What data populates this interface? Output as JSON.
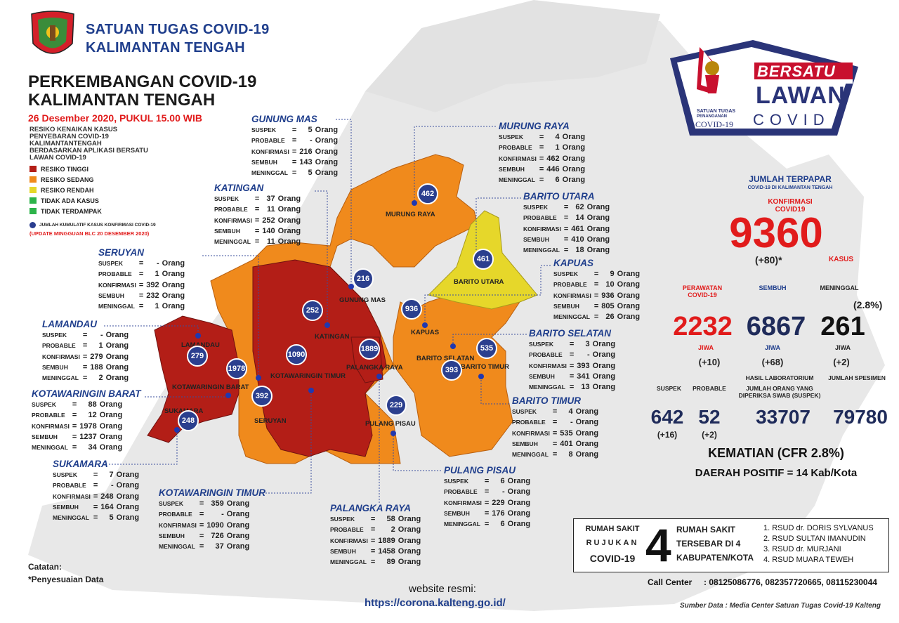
{
  "header": {
    "org_line1": "SATUAN TUGAS COVID-19",
    "org_line2": "KALIMANTAN TENGAH",
    "title_line1": "PERKEMBANGAN COVID-19",
    "title_line2": "KALIMANTAN TENGAH",
    "date": "26 Desember 2020, PUKUL 15.00 WIB"
  },
  "legend": {
    "title": "RESIKO KENAIKAN KASUS PENYEBARAN COVID-19 KALIMANTANTENGAH BERDASARKAN APLIKASI BERSATU LAWAN COVID-19",
    "items": [
      {
        "label": "RESIKO TINGGI",
        "color": "#b31e17"
      },
      {
        "label": "RESIKO SEDANG",
        "color": "#f08a1c"
      },
      {
        "label": "RESIKO RENDAH",
        "color": "#e6d72a"
      },
      {
        "label": "TIDAK ADA KASUS",
        "color": "#2db34a"
      },
      {
        "label": "TIDAK TERDAMPAK",
        "color": "#2db34a"
      }
    ],
    "dot_label": "JUMLAH KUMULATIF KASUS KONFIRMASI COVID-19",
    "update": "(UPDATE MINGGUAN BLC 20 DESEMBER 2020)"
  },
  "stat_keys": {
    "suspek": "SUSPEK",
    "probable": "PROBABLE",
    "konfirmasi": "KONFIRMASI",
    "sembuh": "SEMBUH",
    "meninggal": "MENINGGAL",
    "eq": "=",
    "unit": "Orang"
  },
  "regions": {
    "gunung_mas": {
      "name": "GUNUNG MAS",
      "suspek": "5",
      "probable": "-",
      "konfirmasi": "216",
      "sembuh": "143",
      "meninggal": "5"
    },
    "murung_raya": {
      "name": "MURUNG RAYA",
      "suspek": "4",
      "probable": "1",
      "konfirmasi": "462",
      "sembuh": "446",
      "meninggal": "6"
    },
    "katingan": {
      "name": "KATINGAN",
      "suspek": "37",
      "probable": "11",
      "konfirmasi": "252",
      "sembuh": "140",
      "meninggal": "11"
    },
    "barito_utara": {
      "name": "BARITO UTARA",
      "suspek": "62",
      "probable": "14",
      "konfirmasi": "461",
      "sembuh": "410",
      "meninggal": "18"
    },
    "seruyan": {
      "name": "SERUYAN",
      "suspek": "-",
      "probable": "1",
      "konfirmasi": "392",
      "sembuh": "232",
      "meninggal": "1"
    },
    "kapuas": {
      "name": "KAPUAS",
      "suspek": "9",
      "probable": "10",
      "konfirmasi": "936",
      "sembuh": "805",
      "meninggal": "26"
    },
    "lamandau": {
      "name": "LAMANDAU",
      "suspek": "-",
      "probable": "1",
      "konfirmasi": "279",
      "sembuh": "188",
      "meninggal": "2"
    },
    "barito_selatan": {
      "name": "BARITO SELATAN",
      "suspek": "3",
      "probable": "-",
      "konfirmasi": "393",
      "sembuh": "341",
      "meninggal": "13"
    },
    "kotawaringin_barat": {
      "name": "KOTAWARINGIN BARAT",
      "suspek": "88",
      "probable": "12",
      "konfirmasi": "1978",
      "sembuh": "1237",
      "meninggal": "34"
    },
    "barito_timur": {
      "name": "BARITO TIMUR",
      "suspek": "4",
      "probable": "-",
      "konfirmasi": "535",
      "sembuh": "401",
      "meninggal": "8"
    },
    "sukamara": {
      "name": "SUKAMARA",
      "suspek": "7",
      "probable": "-",
      "konfirmasi": "248",
      "sembuh": "164",
      "meninggal": "5"
    },
    "pulang_pisau": {
      "name": "PULANG PISAU",
      "suspek": "6",
      "probable": "-",
      "konfirmasi": "229",
      "sembuh": "176",
      "meninggal": "6"
    },
    "kotawaringin_timur": {
      "name": "KOTAWARINGIN TIMUR",
      "suspek": "359",
      "probable": "-",
      "konfirmasi": "1090",
      "sembuh": "726",
      "meninggal": "37"
    },
    "palangka_raya": {
      "name": "PALANGKA RAYA",
      "suspek": "58",
      "probable": "2",
      "konfirmasi": "1889",
      "sembuh": "1458",
      "meninggal": "89"
    }
  },
  "map_labels": {
    "murung_raya": "MURUNG RAYA",
    "barito_utara": "BARITO UTARA",
    "gunung_mas": "GUNUNG MAS",
    "kapuas": "KAPUAS",
    "katingan": "KATINGAN",
    "lamandau": "LAMANDAU",
    "kotawaringin_barat": "KOTAWARINGIN BARAT",
    "kotawaringin_timur": "KOTAWARINGIN TIMUR",
    "palangka_raya": "PALANGKA RAYA",
    "barito_selatan": "BARITO SELATAN",
    "barito_timur": "BARITO TIMUR",
    "sukamara": "SUKAMARA",
    "seruyan": "SERUYAN",
    "pulang_pisau": "PULANG PISAU"
  },
  "markers": {
    "murung_raya": "462",
    "barito_utara": "461",
    "gunung_mas": "216",
    "katingan": "252",
    "kapuas": "936",
    "palangka_raya": "1889",
    "barito_timur": "535",
    "barito_selatan": "393",
    "kotawaringin_timur": "1090",
    "lamandau": "279",
    "kotawaringin_barat": "1978",
    "seruyan": "392",
    "pulang_pisau": "229",
    "sukamara": "248"
  },
  "logo": {
    "bersatu": "BERSATU",
    "lawan": "LAWAN",
    "covid": "COVID",
    "satgas1": "SATUAN TUGAS",
    "satgas2": "PENANGANAN",
    "satgas3": "COVID-19"
  },
  "summary": {
    "jumlah_terpapar": "JUMLAH TERPAPAR",
    "terpapar_sub": "COVID-19 DI KALIMANTAN TENGAH",
    "konfirmasi_label1": "KONFIRMASI",
    "konfirmasi_label2": "COVID19",
    "konfirmasi_value": "9360",
    "konfirmasi_delta": "(+80)*",
    "kasus": "KASUS",
    "perawatan_label1": "PERAWATAN",
    "perawatan_label2": "COVID-19",
    "sembuh_label": "SEMBUH",
    "meninggal_label": "MENINGGAL",
    "meninggal_pct": "(2.8%)",
    "perawatan_value": "2232",
    "sembuh_value": "6867",
    "meninggal_value": "261",
    "jiwa": "JIWA",
    "perawatan_delta": "(+10)",
    "sembuh_delta": "(+68)",
    "meninggal_delta": "(+2)",
    "suspek_label": "SUSPEK",
    "probable_label": "PROBABLE",
    "lab_label1": "HASIL LABORATORIUM",
    "lab_label2": "JUMLAH ORANG YANG",
    "lab_label3": "DIPERIKSA SWAB (SUSPEK)",
    "spesimen_label": "JUMLAH SPESIMEN",
    "suspek_value": "642",
    "probable_value": "52",
    "lab_value": "33707",
    "spesimen_value": "79780",
    "suspek_delta": "(+16)",
    "probable_delta": "(+2)",
    "kematian": "KEMATIAN (CFR 2.8%)",
    "daerah_positif": "DAERAH POSITIF = 14 Kab/Kota"
  },
  "hospital": {
    "label1": "RUMAH SAKIT",
    "label2": "RUJUKAN",
    "label3": "COVID-19",
    "count": "4",
    "desc1": "RUMAH SAKIT",
    "desc2": "TERSEBAR DI 4",
    "desc3": "KABUPATEN/KOTA",
    "list": [
      "1. RSUD dr. DORIS SYLVANUS",
      "2. RSUD SULTAN IMANUDIN",
      "3. RSUD dr. MURJANI",
      "4. RSUD MUARA TEWEH"
    ]
  },
  "footer": {
    "catatan": "Catatan:",
    "catatan_note": "*Penyesuaian Data",
    "website_label": "website resmi:",
    "website_url": "https://corona.kalteng.go.id/",
    "call_center": "Call Center     : 08125086776, 082357720665, 08115230044",
    "sumber": "Sumber Data : Media Center Satuan Tugas Covid-19 Kalteng"
  }
}
